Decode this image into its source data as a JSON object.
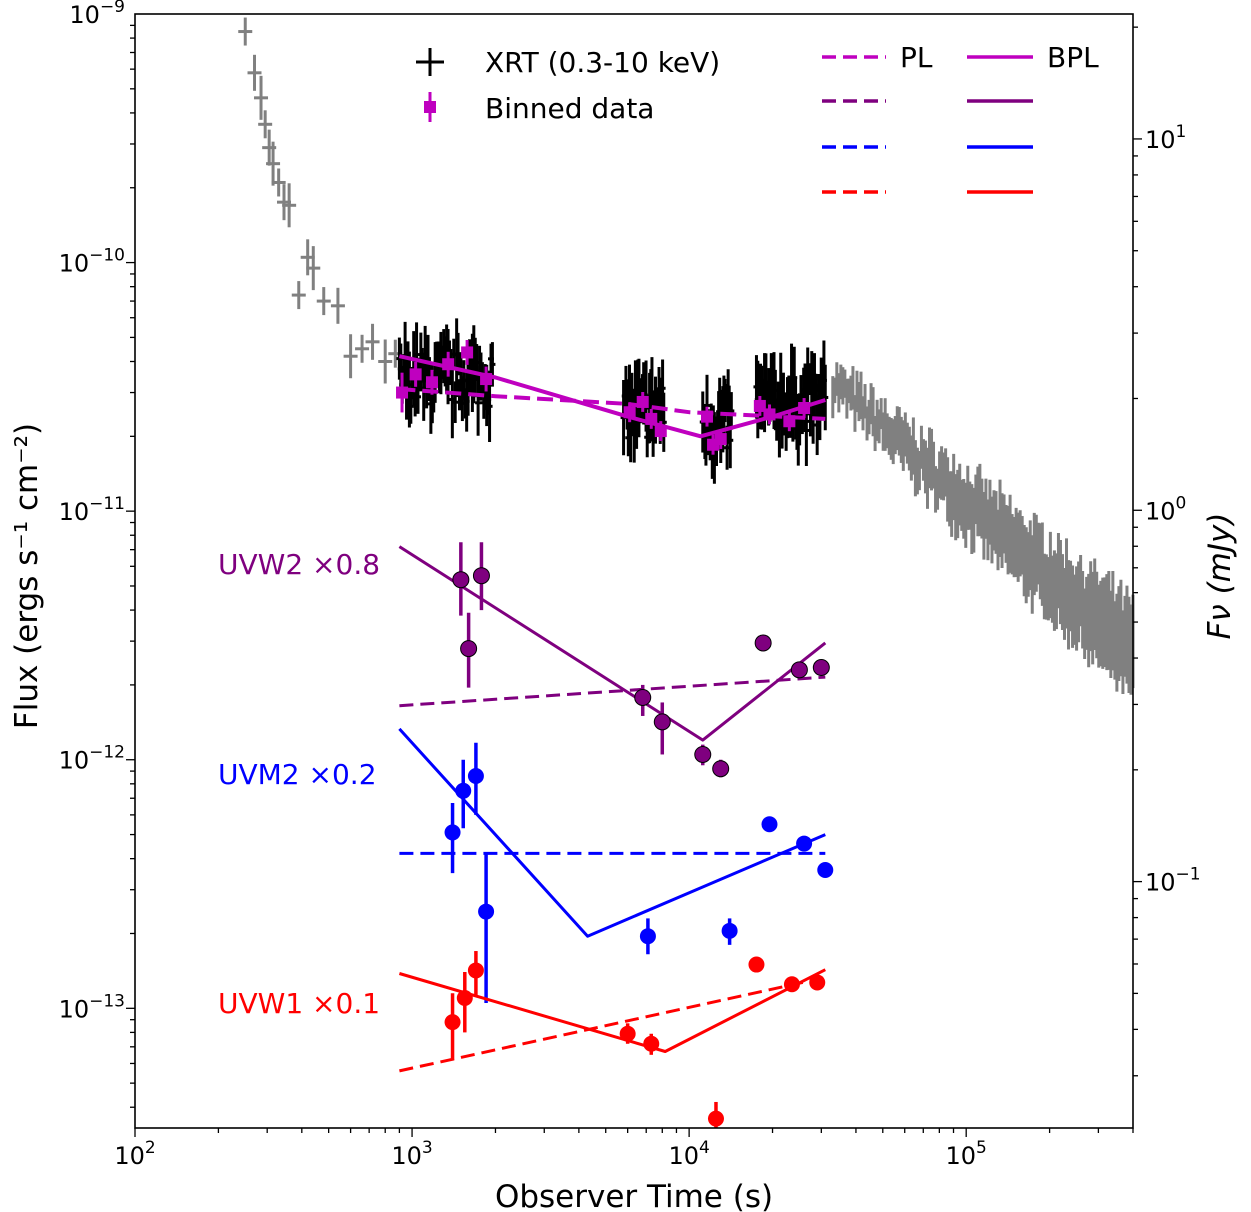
{
  "chart_data": {
    "type": "scatter",
    "xlabel": "Observer Time (s)",
    "ylabel_left": "Flux (ergs s⁻¹ cm⁻²)",
    "ylabel_right": "Fν (mJy)",
    "xscale": "log",
    "yscale": "log",
    "xlim": [
      100,
      400000
    ],
    "ylim": [
      3.3e-14,
      1e-09
    ],
    "right_ylim": [
      0.0217,
      21.7
    ],
    "x_ticks": [
      {
        "value": 100,
        "label": "10^2"
      },
      {
        "value": 1000,
        "label": "10^3"
      },
      {
        "value": 10000,
        "label": "10^4"
      },
      {
        "value": 100000,
        "label": "10^5"
      }
    ],
    "y_ticks": [
      {
        "value": 1e-13,
        "label": "10^-13"
      },
      {
        "value": 1e-12,
        "label": "10^-12"
      },
      {
        "value": 1e-11,
        "label": "10^-11"
      },
      {
        "value": 1e-10,
        "label": "10^-10"
      },
      {
        "value": 1e-09,
        "label": "10^-9"
      }
    ],
    "right_ticks": [
      {
        "value": 0.1,
        "label": "10^-1"
      },
      {
        "value": 1,
        "label": "10^0"
      },
      {
        "value": 10,
        "label": "10^1"
      }
    ],
    "colors": {
      "xrt_gray": "#808080",
      "xrt_black": "#000000",
      "binned": "#bf00bf",
      "uvw2": "#7f007f",
      "uvm2": "#0000ff",
      "uvw1": "#ff0000"
    },
    "legend": {
      "xrt": "XRT (0.3-10 keV)",
      "binned": "Binned data",
      "pl": "PL",
      "bpl": "BPL"
    },
    "band_labels": {
      "uvw2": "UVW2 ×0.8",
      "uvm2": "UVM2 ×0.2",
      "uvw1": "UVW1 ×0.1"
    },
    "xrt_early_gray": [
      {
        "t": 250,
        "f": 8.5e-10
      },
      {
        "t": 270,
        "f": 5.8e-10
      },
      {
        "t": 285,
        "f": 4.6e-10
      },
      {
        "t": 295,
        "f": 3.6e-10
      },
      {
        "t": 305,
        "f": 2.9e-10
      },
      {
        "t": 315,
        "f": 2.5e-10
      },
      {
        "t": 330,
        "f": 2.1e-10
      },
      {
        "t": 345,
        "f": 1.75e-10
      },
      {
        "t": 360,
        "f": 1.7e-10
      },
      {
        "t": 390,
        "f": 7.4e-11
      },
      {
        "t": 420,
        "f": 1.05e-10
      },
      {
        "t": 440,
        "f": 9.5e-11
      },
      {
        "t": 480,
        "f": 7e-11
      },
      {
        "t": 540,
        "f": 6.7e-11
      },
      {
        "t": 600,
        "f": 4.2e-11
      },
      {
        "t": 660,
        "f": 4.5e-11
      },
      {
        "t": 720,
        "f": 4.8e-11
      },
      {
        "t": 800,
        "f": 4e-11
      },
      {
        "t": 870,
        "f": 4.3e-11
      }
    ],
    "xrt_late_gray": {
      "t_start": 33000,
      "t_end": 400000,
      "f_start": 3.3e-11,
      "f_end": 2.7e-12
    },
    "xrt_black_segments": [
      {
        "t_start": 900,
        "t_end": 1950,
        "f_mid": 3.4e-11
      },
      {
        "t_start": 5800,
        "t_end": 8100,
        "f_mid": 2.5e-11
      },
      {
        "t_start": 11200,
        "t_end": 14200,
        "f_mid": 2.2e-11
      },
      {
        "t_start": 17500,
        "t_end": 31000,
        "f_mid": 2.7e-11
      }
    ],
    "binned": [
      {
        "t": 920,
        "f": 3e-11,
        "err": 0.08
      },
      {
        "t": 1030,
        "f": 3.55e-11,
        "err": 0.05
      },
      {
        "t": 1180,
        "f": 3.3e-11,
        "err": 0.05
      },
      {
        "t": 1350,
        "f": 3.9e-11,
        "err": 0.05
      },
      {
        "t": 1580,
        "f": 4.35e-11,
        "err": 0.05
      },
      {
        "t": 1850,
        "f": 3.4e-11,
        "err": 0.05
      },
      {
        "t": 6100,
        "f": 2.5e-11,
        "err": 0.04
      },
      {
        "t": 6800,
        "f": 2.75e-11,
        "err": 0.04
      },
      {
        "t": 7300,
        "f": 2.35e-11,
        "err": 0.04
      },
      {
        "t": 7900,
        "f": 2.1e-11,
        "err": 0.04
      },
      {
        "t": 11600,
        "f": 2.4e-11,
        "err": 0.04
      },
      {
        "t": 12200,
        "f": 1.85e-11,
        "err": 0.04
      },
      {
        "t": 13000,
        "f": 1.95e-11,
        "err": 0.04
      },
      {
        "t": 18000,
        "f": 2.65e-11,
        "err": 0.04
      },
      {
        "t": 19500,
        "f": 2.45e-11,
        "err": 0.04
      },
      {
        "t": 23000,
        "f": 2.3e-11,
        "err": 0.04
      },
      {
        "t": 26000,
        "f": 2.6e-11,
        "err": 0.04
      }
    ],
    "binned_models": {
      "pl": [
        [
          900,
          3.1e-11
        ],
        [
          2000,
          2.9e-11
        ],
        [
          6000,
          2.7e-11
        ],
        [
          10000,
          2.5e-11
        ],
        [
          31000,
          2.35e-11
        ]
      ],
      "bpl": [
        [
          900,
          4.2e-11
        ],
        [
          2000,
          3.45e-11
        ],
        [
          6000,
          2.4e-11
        ],
        [
          11000,
          2e-11
        ],
        [
          20000,
          2.4e-11
        ],
        [
          31000,
          2.8e-11
        ]
      ]
    },
    "series": [
      {
        "name": "UVW2 x0.8",
        "color_key": "uvw2",
        "points": [
          {
            "t": 1500,
            "f": 5.3e-12,
            "elo": 3.8e-12,
            "ehi": 7.5e-12
          },
          {
            "t": 1600,
            "f": 2.8e-12,
            "elo": 1.95e-12,
            "ehi": 3.9e-12
          },
          {
            "t": 1780,
            "f": 5.5e-12,
            "elo": 4e-12,
            "ehi": 7.5e-12
          },
          {
            "t": 6800,
            "f": 1.78e-12,
            "elo": 1.5e-12,
            "ehi": 2e-12
          },
          {
            "t": 8000,
            "f": 1.42e-12,
            "elo": 1.05e-12,
            "ehi": 1.7e-12
          },
          {
            "t": 11200,
            "f": 1.05e-12,
            "elo": 9.5e-13,
            "ehi": 1.15e-12
          },
          {
            "t": 13000,
            "f": 9.2e-13,
            "elo": 8.5e-13,
            "ehi": 1e-12
          },
          {
            "t": 18500,
            "f": 2.95e-12,
            "elo": 2.85e-12,
            "ehi": 3.05e-12
          },
          {
            "t": 25000,
            "f": 2.3e-12,
            "elo": 2.2e-12,
            "ehi": 2.4e-12
          },
          {
            "t": 30000,
            "f": 2.35e-12,
            "elo": 2.25e-12,
            "ehi": 2.45e-12
          }
        ],
        "pl": [
          [
            900,
            1.65e-12
          ],
          [
            31000,
            2.15e-12
          ]
        ],
        "bpl": [
          [
            900,
            7.2e-12
          ],
          [
            11200,
            1.2e-12
          ],
          [
            31000,
            2.95e-12
          ]
        ]
      },
      {
        "name": "UVM2 x0.2",
        "color_key": "uvm2",
        "points": [
          {
            "t": 1400,
            "f": 5.1e-13,
            "elo": 3.5e-13,
            "ehi": 6.7e-13
          },
          {
            "t": 1530,
            "f": 7.5e-13,
            "elo": 5.3e-13,
            "ehi": 1e-12
          },
          {
            "t": 1700,
            "f": 8.6e-13,
            "elo": 6e-13,
            "ehi": 1.17e-12
          },
          {
            "t": 1850,
            "f": 2.45e-13,
            "elo": 1.05e-13,
            "ehi": 4.2e-13
          },
          {
            "t": 7100,
            "f": 1.95e-13,
            "elo": 1.65e-13,
            "ehi": 2.3e-13
          },
          {
            "t": 14000,
            "f": 2.05e-13,
            "elo": 1.8e-13,
            "ehi": 2.3e-13
          },
          {
            "t": 19500,
            "f": 5.5e-13,
            "elo": 5.3e-13,
            "ehi": 5.7e-13
          },
          {
            "t": 26000,
            "f": 4.6e-13,
            "elo": 4.4e-13,
            "ehi": 4.8e-13
          },
          {
            "t": 31000,
            "f": 3.6e-13,
            "elo": 3.4e-13,
            "ehi": 3.8e-13
          }
        ],
        "pl": [
          [
            900,
            4.2e-13
          ],
          [
            31000,
            4.2e-13
          ]
        ],
        "bpl": [
          [
            900,
            1.33e-12
          ],
          [
            4300,
            1.95e-13
          ],
          [
            31000,
            5e-13
          ]
        ]
      },
      {
        "name": "UVW1 x0.1",
        "color_key": "uvw1",
        "points": [
          {
            "t": 1400,
            "f": 8.8e-14,
            "elo": 6.2e-14,
            "ehi": 1.15e-13
          },
          {
            "t": 1550,
            "f": 1.1e-13,
            "elo": 8e-14,
            "ehi": 1.4e-13
          },
          {
            "t": 1700,
            "f": 1.42e-13,
            "elo": 1.12e-13,
            "ehi": 1.7e-13
          },
          {
            "t": 6000,
            "f": 7.9e-14,
            "elo": 7.2e-14,
            "ehi": 8.7e-14
          },
          {
            "t": 7300,
            "f": 7.2e-14,
            "elo": 6.5e-14,
            "ehi": 7.9e-14
          },
          {
            "t": 12500,
            "f": 3.6e-14,
            "elo": 3.3e-14,
            "ehi": 4.2e-14
          },
          {
            "t": 17500,
            "f": 1.5e-13,
            "elo": 1.45e-13,
            "ehi": 1.55e-13
          },
          {
            "t": 23500,
            "f": 1.25e-13,
            "elo": 1.2e-13,
            "ehi": 1.3e-13
          },
          {
            "t": 29000,
            "f": 1.27e-13,
            "elo": 1.22e-13,
            "ehi": 1.32e-13
          }
        ],
        "pl": [
          [
            900,
            5.6e-14
          ],
          [
            31000,
            1.33e-13
          ]
        ],
        "bpl": [
          [
            900,
            1.38e-13
          ],
          [
            8200,
            6.7e-14
          ],
          [
            31000,
            1.43e-13
          ]
        ]
      }
    ]
  }
}
